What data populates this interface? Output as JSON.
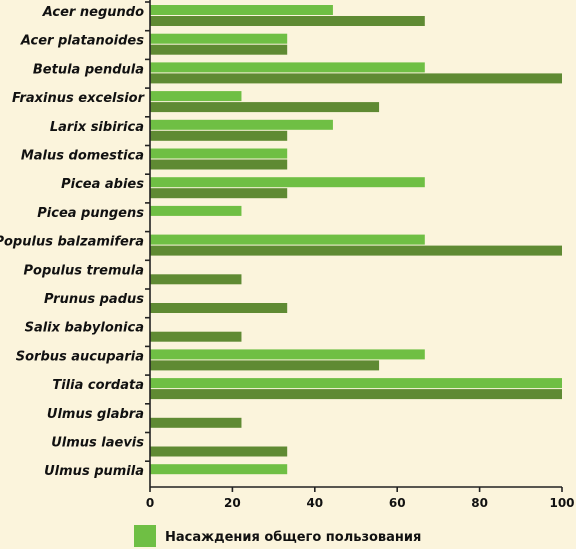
{
  "chart_data": {
    "type": "bar",
    "orientation": "horizontal",
    "categories": [
      "Acer negundo",
      "Acer platanoides",
      "Betula pendula",
      "Fraxinus excelsior",
      "Larix sibirica",
      "Malus domestica",
      "Picea abies",
      "Picea pungens",
      "Populus balzamifera",
      "Populus tremula",
      "Prunus padus",
      "Salix babylonica",
      "Sorbus aucuparia",
      "Tilia cordata",
      "Ulmus glabra",
      "Ulmus laevis",
      "Ulmus pumila"
    ],
    "series": [
      {
        "name": "Насаждения общего пользования",
        "color": "#6fbf44",
        "values": [
          44.4,
          33.3,
          66.7,
          22.2,
          44.4,
          33.3,
          66.7,
          22.2,
          66.7,
          0,
          0,
          0,
          66.7,
          100,
          0,
          0,
          33.3
        ]
      },
      {
        "color": "#5f8a33",
        "values": [
          66.7,
          33.3,
          100,
          55.6,
          33.3,
          33.3,
          33.3,
          0,
          100,
          22.2,
          33.3,
          22.2,
          55.6,
          100,
          22.2,
          33.3,
          0
        ]
      }
    ],
    "xlim": [
      0,
      100
    ],
    "xticks": [
      0,
      20,
      40,
      60,
      80,
      100
    ],
    "legend_position": "bottom-left",
    "grid": false
  }
}
